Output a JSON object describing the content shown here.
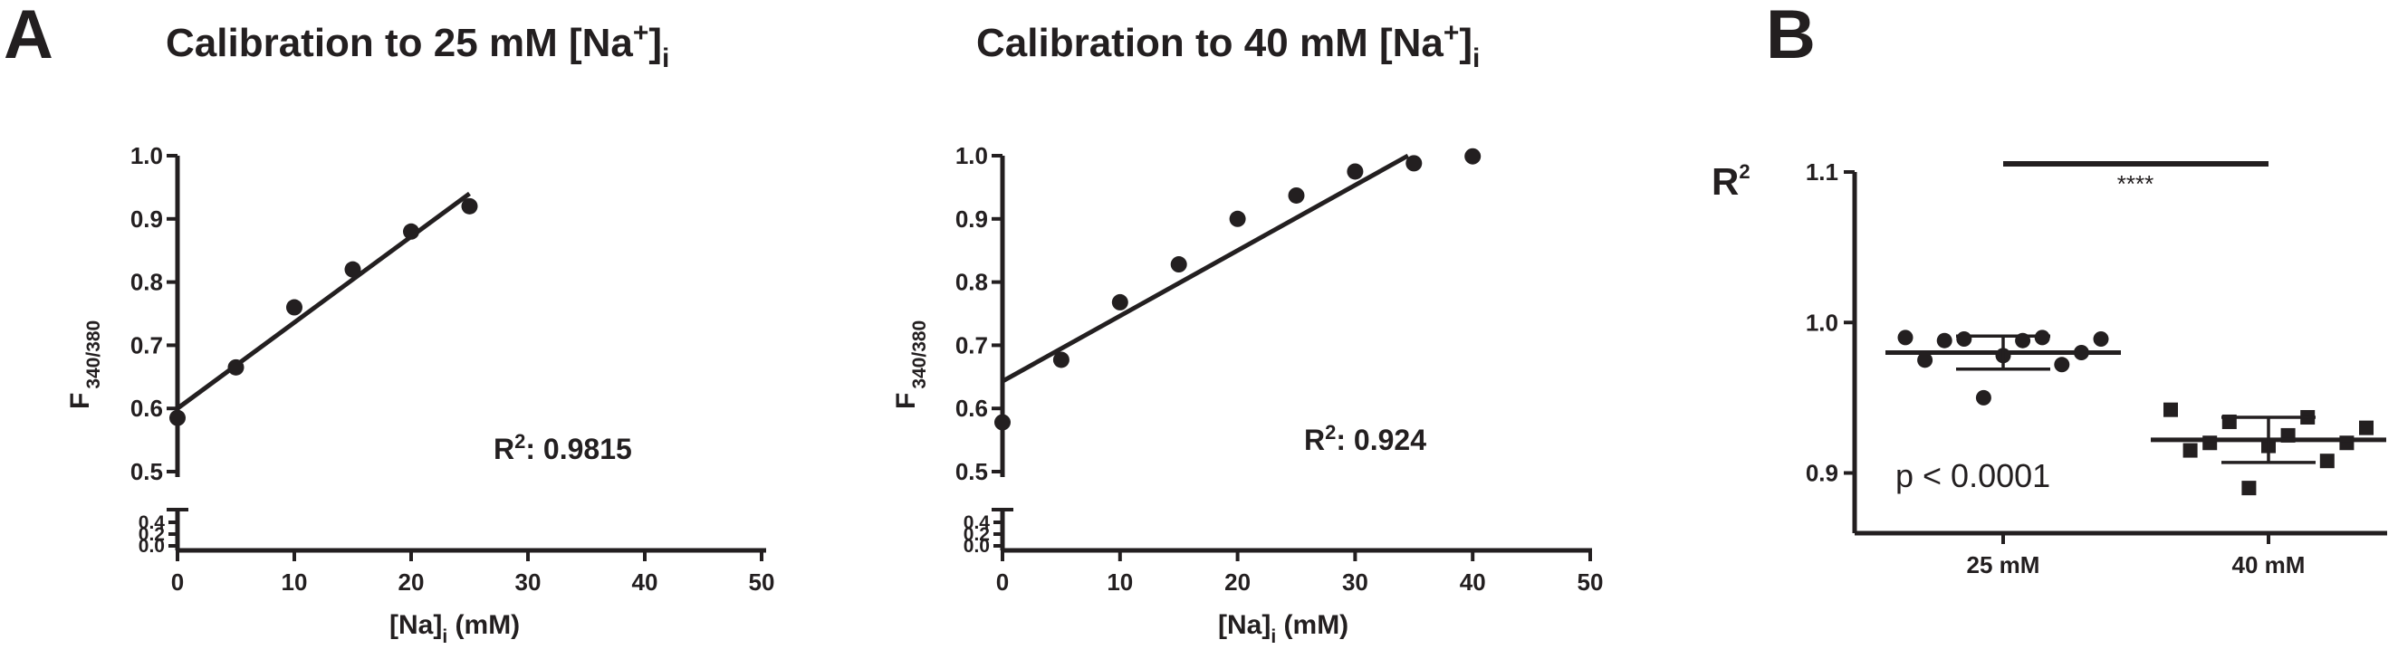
{
  "panels": {
    "a_letter": "A",
    "b_letter": "B"
  },
  "chart_data": [
    {
      "type": "scatter",
      "title": "Calibration to 25 mM [Na",
      "title_sup": "+",
      "title_close": "]",
      "title_sub": "i",
      "xlabel": "[Na]",
      "xlabel_sub": "i",
      "xlabel_unit": " (mM)",
      "ylabel": "F",
      "ylabel_sub": "340/380",
      "xlim": [
        0,
        50
      ],
      "xticks": [
        "0",
        "10",
        "20",
        "30",
        "40",
        "50"
      ],
      "ylim": [
        0.5,
        1.0
      ],
      "yticks": [
        "0.5",
        "0.6",
        "0.7",
        "0.8",
        "0.9",
        "1.0"
      ],
      "ylower_ticks": [
        "0.0",
        "0.2",
        "0.4"
      ],
      "axis_break": true,
      "points": [
        {
          "x": 0,
          "y": 0.585
        },
        {
          "x": 5,
          "y": 0.665
        },
        {
          "x": 10,
          "y": 0.76
        },
        {
          "x": 15,
          "y": 0.82
        },
        {
          "x": 20,
          "y": 0.88
        },
        {
          "x": 25,
          "y": 0.92
        }
      ],
      "fit": {
        "x": [
          0,
          25
        ],
        "y": [
          0.6,
          0.94
        ]
      },
      "annotation": {
        "prefix": "R",
        "sup": "2",
        "text": ": 0.9815"
      }
    },
    {
      "type": "scatter",
      "title": "Calibration to 40 mM [Na",
      "title_sup": "+",
      "title_close": "]",
      "title_sub": "i",
      "xlabel": "[Na]",
      "xlabel_sub": "i",
      "xlabel_unit": " (mM)",
      "ylabel": "F",
      "ylabel_sub": "340/380",
      "xlim": [
        0,
        50
      ],
      "xticks": [
        "0",
        "10",
        "20",
        "30",
        "40",
        "50"
      ],
      "ylim": [
        0.5,
        1.0
      ],
      "yticks": [
        "0.5",
        "0.6",
        "0.7",
        "0.8",
        "0.9",
        "1.0"
      ],
      "ylower_ticks": [
        "0.0",
        "0.2",
        "0.4"
      ],
      "axis_break": true,
      "points": [
        {
          "x": 0,
          "y": 0.578
        },
        {
          "x": 5,
          "y": 0.677
        },
        {
          "x": 10,
          "y": 0.768
        },
        {
          "x": 15,
          "y": 0.828
        },
        {
          "x": 20,
          "y": 0.9
        },
        {
          "x": 25,
          "y": 0.937
        },
        {
          "x": 30,
          "y": 0.975
        },
        {
          "x": 35,
          "y": 0.988
        },
        {
          "x": 40,
          "y": 0.999
        }
      ],
      "fit": {
        "x": [
          0,
          34.5
        ],
        "y": [
          0.643,
          1.0
        ]
      },
      "annotation": {
        "prefix": "R",
        "sup": "2",
        "text": ": 0.924"
      }
    },
    {
      "type": "scatter",
      "ylabel": "R",
      "ylabel_sup": "2",
      "categories": [
        "25 mM",
        "40 mM"
      ],
      "ylim": [
        0.86,
        1.1
      ],
      "yticks": [
        "0.9",
        "1.0",
        "1.1"
      ],
      "series": [
        {
          "category": "25 mM",
          "marker": "circle",
          "values": [
            0.99,
            0.988,
            0.989,
            0.99,
            0.989,
            0.988,
            0.98,
            0.978,
            0.975,
            0.972,
            0.95
          ],
          "mean": 0.98,
          "sd": 0.011
        },
        {
          "category": "40 mM",
          "marker": "square",
          "values": [
            0.942,
            0.937,
            0.934,
            0.93,
            0.925,
            0.92,
            0.92,
            0.918,
            0.915,
            0.908,
            0.89
          ],
          "mean": 0.922,
          "sd": 0.015
        }
      ],
      "significance": "****",
      "annotation": "p < 0.0001"
    }
  ]
}
